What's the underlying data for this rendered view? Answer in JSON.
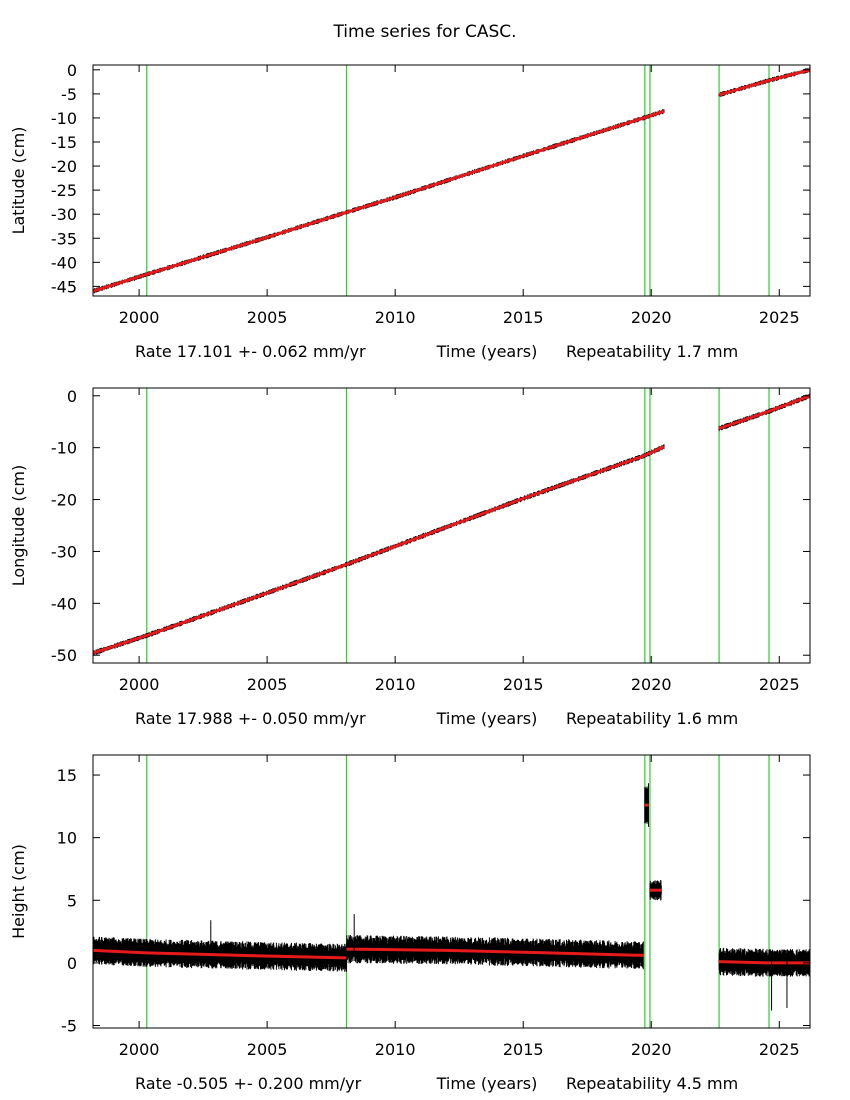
{
  "title": "Time series for CASC.",
  "colors": {
    "fit": "#e8191b",
    "data": "#000000",
    "events": "#2ecc2e",
    "frame": "#000000"
  },
  "event_years": [
    2000.3,
    2008.1,
    2019.75,
    2019.95,
    2022.65,
    2024.6
  ],
  "chart_data": [
    {
      "type": "line",
      "xlim": [
        1998.2,
        2026.2
      ],
      "ylim": [
        -47,
        1
      ],
      "ylabel": "Latitude (cm)",
      "yticks": [
        0,
        -5,
        -10,
        -15,
        -20,
        -25,
        -30,
        -35,
        -40,
        -45
      ],
      "xticks": [
        2000,
        2005,
        2010,
        2015,
        2020,
        2025
      ],
      "bottom_text": {
        "rate": "Rate 17.101 +- 0.062 mm/yr",
        "xlabel": "Time (years)",
        "repeat": "Repeatability 1.7 mm"
      },
      "segments": [
        {
          "x": [
            1998.2,
            2000.3,
            2005.0,
            2008.1,
            2010.0,
            2015.0,
            2019.7,
            2020.5
          ],
          "y": [
            -46.0,
            -42.5,
            -34.8,
            -29.6,
            -26.5,
            -17.9,
            -10.0,
            -8.6
          ]
        },
        {
          "x": [
            2022.65,
            2024.6,
            2026.2
          ],
          "y": [
            -5.2,
            -2.2,
            0.0
          ]
        }
      ]
    },
    {
      "type": "line",
      "xlim": [
        1998.2,
        2026.2
      ],
      "ylim": [
        -51.5,
        1.5
      ],
      "ylabel": "Longitude (cm)",
      "yticks": [
        0,
        -10,
        -20,
        -30,
        -40,
        -50
      ],
      "xticks": [
        2000,
        2005,
        2010,
        2015,
        2020,
        2025
      ],
      "bottom_text": {
        "rate": "Rate 17.988 +- 0.050 mm/yr",
        "xlabel": "Time (years)",
        "repeat": "Repeatability 1.6 mm"
      },
      "segments": [
        {
          "x": [
            1998.2,
            2000.3,
            2005.0,
            2008.1,
            2010.0,
            2015.0,
            2019.7,
            2020.5
          ],
          "y": [
            -49.6,
            -46.2,
            -38.0,
            -32.5,
            -29.0,
            -19.8,
            -11.6,
            -9.8
          ]
        },
        {
          "x": [
            2022.65,
            2024.6,
            2026.2
          ],
          "y": [
            -6.3,
            -3.0,
            0.0
          ]
        }
      ]
    },
    {
      "type": "line",
      "xlim": [
        1998.2,
        2026.2
      ],
      "ylim": [
        -5.2,
        16.6
      ],
      "ylabel": "Height (cm)",
      "yticks": [
        15,
        10,
        5,
        0,
        -5
      ],
      "xticks": [
        2000,
        2005,
        2010,
        2015,
        2020,
        2025
      ],
      "bottom_text": {
        "rate": "Rate -0.505 +- 0.200 mm/yr",
        "xlabel": "Time (years)",
        "repeat": "Repeatability 4.5 mm"
      },
      "segments": [
        {
          "x": [
            1998.2,
            2000.3,
            2004.0,
            2008.1
          ],
          "y": [
            1.0,
            0.8,
            0.6,
            0.4
          ]
        },
        {
          "x": [
            2008.1,
            2012.0,
            2016.0,
            2019.7
          ],
          "y": [
            1.1,
            1.0,
            0.8,
            0.6
          ]
        },
        {
          "x": [
            2019.75,
            2019.9
          ],
          "y": [
            12.6,
            12.6
          ]
        },
        {
          "x": [
            2019.95,
            2020.4
          ],
          "y": [
            5.8,
            5.8
          ]
        },
        {
          "x": [
            2022.65,
            2024.6,
            2026.2
          ],
          "y": [
            0.1,
            0.0,
            0.0
          ]
        }
      ],
      "spikes": [
        {
          "x": 2002.8,
          "y": 3.4
        },
        {
          "x": 2008.4,
          "y": 3.9
        },
        {
          "x": 2024.7,
          "y": -3.8
        },
        {
          "x": 2025.3,
          "y": -3.6
        }
      ]
    }
  ]
}
